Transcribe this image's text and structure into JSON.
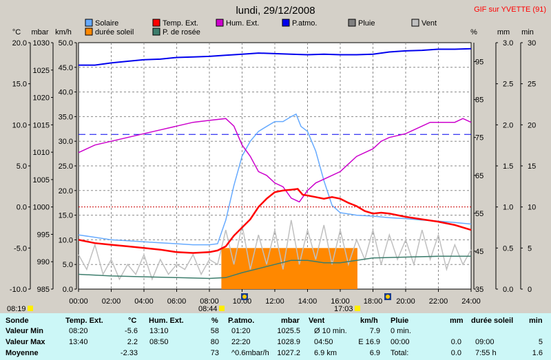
{
  "page": {
    "title": "lundi, 29/12/2008",
    "station": "GIF sur YVETTE (91)",
    "sunrise": "08:44",
    "sunset": "17:03",
    "first_time": "08:19"
  },
  "colors": {
    "solar": "#66aaff",
    "temp": "#ff0000",
    "hum": "#cc00cc",
    "press": "#0000ee",
    "rain": "#808080",
    "wind": "#c0c0c0",
    "sun": "#ff8800",
    "dew": "#3c7d6c"
  },
  "chart_data": {
    "type": "line",
    "x_range": [
      "00:00",
      "24:00"
    ],
    "x_ticks": [
      "00:00",
      "02:00",
      "04:00",
      "06:00",
      "08:00",
      "10:00",
      "12:00",
      "14:00",
      "16:00",
      "18:00",
      "20:00",
      "22:00",
      "24:00"
    ],
    "axes": [
      {
        "unit": "°C",
        "ylim": [
          -10,
          20
        ],
        "ticks": [
          "20.0",
          "15.0",
          "10.0",
          "5.0",
          "0.0",
          "-5.0",
          "-10.0"
        ]
      },
      {
        "unit": "mbar",
        "ylim": [
          985,
          1030
        ],
        "ticks": [
          "1030",
          "1025",
          "1020",
          "1015",
          "1010",
          "1005",
          "1000",
          "995",
          "990",
          "985"
        ]
      },
      {
        "unit": "km/h",
        "ylim": [
          0,
          50
        ],
        "ticks": [
          "50.0",
          "45.0",
          "40.0",
          "35.0",
          "30.0",
          "25.0",
          "20.0",
          "15.0",
          "10.0",
          "5.0",
          "0.0"
        ]
      },
      {
        "unit": "%",
        "ylim": [
          35,
          100
        ],
        "ticks": [
          "95",
          "85",
          "75",
          "65",
          "55",
          "45",
          "35"
        ]
      },
      {
        "unit": "mm",
        "ylim": [
          0,
          3
        ],
        "ticks": [
          "3.0",
          "2.5",
          "2.0",
          "1.5",
          "1.0",
          "0.5",
          "0.0"
        ]
      },
      {
        "unit": "min",
        "ylim": [
          0,
          30
        ],
        "ticks": [
          "30",
          "25",
          "20",
          "15",
          "10",
          "5",
          "0"
        ]
      }
    ],
    "legend": [
      {
        "name": "Solaire",
        "color": "#66aaff"
      },
      {
        "name": "Temp. Ext.",
        "color": "#ff0000"
      },
      {
        "name": "Hum. Ext.",
        "color": "#cc00cc"
      },
      {
        "name": "P.atmo.",
        "color": "#0000ee"
      },
      {
        "name": "Pluie",
        "color": "#808080"
      },
      {
        "name": "Vent",
        "color": "#c0c0c0"
      },
      {
        "name": "durée soleil",
        "color": "#ff8800"
      },
      {
        "name": "P. de rosée",
        "color": "#3c7d6c"
      }
    ],
    "series": [
      {
        "name": "Temp. Ext.",
        "axis": "°C",
        "points": [
          [
            0,
            -4.0
          ],
          [
            1,
            -4.4
          ],
          [
            2,
            -4.6
          ],
          [
            3,
            -4.8
          ],
          [
            4,
            -5.0
          ],
          [
            5,
            -5.2
          ],
          [
            6,
            -5.5
          ],
          [
            7,
            -5.6
          ],
          [
            8,
            -5.5
          ],
          [
            8.5,
            -5.3
          ],
          [
            9,
            -4.8
          ],
          [
            9.5,
            -3.5
          ],
          [
            10,
            -2.5
          ],
          [
            10.5,
            -1.5
          ],
          [
            11,
            0
          ],
          [
            11.5,
            1.0
          ],
          [
            12,
            1.8
          ],
          [
            12.5,
            2.0
          ],
          [
            13,
            2.1
          ],
          [
            13.4,
            2.2
          ],
          [
            13.7,
            1.5
          ],
          [
            14,
            1.4
          ],
          [
            14.5,
            1.2
          ],
          [
            15,
            1.0
          ],
          [
            15.5,
            1.2
          ],
          [
            16,
            1.0
          ],
          [
            16.5,
            0.5
          ],
          [
            17,
            0.1
          ],
          [
            17.5,
            -0.5
          ],
          [
            18,
            -0.8
          ],
          [
            18.5,
            -0.7
          ],
          [
            19,
            -0.8
          ],
          [
            19.5,
            -1.0
          ],
          [
            20,
            -1.2
          ],
          [
            21,
            -1.5
          ],
          [
            22,
            -1.8
          ],
          [
            23,
            -2.2
          ],
          [
            24,
            -2.8
          ]
        ]
      },
      {
        "name": "P.atmo.",
        "axis": "mbar",
        "points": [
          [
            0,
            1025.9
          ],
          [
            1,
            1025.9
          ],
          [
            2,
            1026.3
          ],
          [
            3,
            1026.6
          ],
          [
            4,
            1026.9
          ],
          [
            5,
            1027.0
          ],
          [
            6,
            1027.3
          ],
          [
            7,
            1027.4
          ],
          [
            8,
            1027.5
          ],
          [
            9,
            1027.7
          ],
          [
            10,
            1027.9
          ],
          [
            11,
            1028.1
          ],
          [
            12,
            1028.0
          ],
          [
            13,
            1027.9
          ],
          [
            14,
            1027.8
          ],
          [
            15,
            1027.9
          ],
          [
            16,
            1027.8
          ],
          [
            17,
            1027.8
          ],
          [
            18,
            1027.9
          ],
          [
            19,
            1028.3
          ],
          [
            20,
            1028.5
          ],
          [
            21,
            1028.6
          ],
          [
            22,
            1028.8
          ],
          [
            23,
            1028.8
          ],
          [
            24,
            1028.9
          ]
        ]
      },
      {
        "name": "Hum. Ext.",
        "axis": "%",
        "points": [
          [
            0,
            71
          ],
          [
            0.5,
            72
          ],
          [
            1,
            73
          ],
          [
            2,
            74
          ],
          [
            3,
            75
          ],
          [
            4,
            76
          ],
          [
            5,
            77
          ],
          [
            6,
            78
          ],
          [
            7,
            79
          ],
          [
            8,
            79.5
          ],
          [
            9,
            80
          ],
          [
            9.5,
            78
          ],
          [
            10,
            73
          ],
          [
            10.5,
            70
          ],
          [
            11,
            66
          ],
          [
            11.5,
            65
          ],
          [
            12,
            63
          ],
          [
            12.5,
            62
          ],
          [
            13,
            59
          ],
          [
            13.5,
            58
          ],
          [
            14,
            61
          ],
          [
            14.5,
            63
          ],
          [
            15,
            64
          ],
          [
            16,
            66
          ],
          [
            16.5,
            68
          ],
          [
            17,
            70
          ],
          [
            18,
            72
          ],
          [
            18.5,
            74
          ],
          [
            19,
            75
          ],
          [
            20,
            76
          ],
          [
            21,
            78
          ],
          [
            21.5,
            79
          ],
          [
            22,
            79
          ],
          [
            23,
            79
          ],
          [
            23.5,
            80
          ],
          [
            24,
            79
          ]
        ]
      },
      {
        "name": "Solaire",
        "axis": "km/h",
        "points": [
          [
            0,
            11
          ],
          [
            1,
            10.5
          ],
          [
            2,
            10
          ],
          [
            3,
            9.8
          ],
          [
            4,
            9.6
          ],
          [
            5,
            9.4
          ],
          [
            6,
            9.2
          ],
          [
            7,
            9.0
          ],
          [
            8,
            9.0
          ],
          [
            8.5,
            9.2
          ],
          [
            9,
            14
          ],
          [
            9.5,
            21
          ],
          [
            10,
            27
          ],
          [
            10.5,
            30
          ],
          [
            11,
            32
          ],
          [
            11.5,
            33
          ],
          [
            12,
            34
          ],
          [
            12.5,
            34
          ],
          [
            13,
            35
          ],
          [
            13.3,
            35.5
          ],
          [
            13.6,
            33
          ],
          [
            14,
            32
          ],
          [
            14.5,
            28
          ],
          [
            15,
            22
          ],
          [
            15.5,
            17
          ],
          [
            16,
            15.5
          ],
          [
            17,
            15
          ],
          [
            18,
            14.8
          ],
          [
            19,
            14.5
          ],
          [
            20,
            14.3
          ],
          [
            21,
            14
          ],
          [
            22,
            13.8
          ],
          [
            23,
            13.5
          ],
          [
            24,
            13.2
          ]
        ]
      },
      {
        "name": "P. de rosée",
        "axis": "°C",
        "points": [
          [
            0,
            -8.2
          ],
          [
            2,
            -8.4
          ],
          [
            4,
            -8.5
          ],
          [
            6,
            -8.6
          ],
          [
            8,
            -8.7
          ],
          [
            9,
            -8.6
          ],
          [
            10,
            -8.0
          ],
          [
            11,
            -7.5
          ],
          [
            12,
            -7.0
          ],
          [
            13,
            -6.5
          ],
          [
            14,
            -6.5
          ],
          [
            15,
            -6.8
          ],
          [
            16,
            -6.8
          ],
          [
            17,
            -6.5
          ],
          [
            18,
            -6.2
          ],
          [
            20,
            -6.1
          ],
          [
            22,
            -6.0
          ],
          [
            24,
            -6.0
          ]
        ]
      },
      {
        "name": "Vent",
        "axis": "km/h",
        "points": [
          [
            0,
            7
          ],
          [
            0.5,
            4
          ],
          [
            1,
            9
          ],
          [
            1.5,
            3
          ],
          [
            2,
            6
          ],
          [
            2.5,
            2
          ],
          [
            3,
            5
          ],
          [
            3.5,
            3
          ],
          [
            4,
            7
          ],
          [
            4.5,
            2
          ],
          [
            5,
            6
          ],
          [
            5.5,
            3
          ],
          [
            6,
            5
          ],
          [
            6.5,
            4
          ],
          [
            7,
            7
          ],
          [
            7.5,
            3
          ],
          [
            8,
            6
          ],
          [
            8.5,
            5
          ],
          [
            9,
            12
          ],
          [
            9.5,
            5
          ],
          [
            10,
            13
          ],
          [
            10.5,
            4
          ],
          [
            11,
            11
          ],
          [
            11.5,
            5
          ],
          [
            12,
            12
          ],
          [
            12.5,
            4
          ],
          [
            13,
            14
          ],
          [
            13.5,
            5
          ],
          [
            14,
            12
          ],
          [
            14.5,
            6
          ],
          [
            15,
            13
          ],
          [
            15.5,
            5
          ],
          [
            16,
            12
          ],
          [
            16.5,
            5
          ],
          [
            17,
            10
          ],
          [
            17.5,
            6
          ],
          [
            18,
            12
          ],
          [
            18.5,
            5
          ],
          [
            19,
            11
          ],
          [
            19.5,
            6
          ],
          [
            20,
            10
          ],
          [
            20.5,
            5
          ],
          [
            21,
            12
          ],
          [
            21.5,
            6
          ],
          [
            22,
            11
          ],
          [
            22.5,
            4
          ],
          [
            23,
            9
          ],
          [
            23.5,
            5
          ],
          [
            24,
            8
          ]
        ]
      }
    ],
    "sun_duration": {
      "axis": "min",
      "start": "08:44",
      "end": "17:03",
      "points": [
        [
          8.5,
          5
        ],
        [
          17,
          5
        ]
      ]
    },
    "reference_lines": [
      {
        "axis": "°C",
        "value": 0,
        "color": "#cc0000",
        "style": "dotted"
      },
      {
        "axis": "mbar",
        "value": 1013.25,
        "color": "#0000ee",
        "style": "dashed"
      }
    ]
  },
  "table": {
    "headers": [
      "Sonde",
      "Temp. Ext.",
      "°C",
      "Hum. Ext.",
      "%",
      "P.atmo.",
      "mbar",
      "Vent",
      "km/h",
      "Pluie",
      "mm",
      "durée soleil",
      "min"
    ],
    "rows": [
      {
        "label": "Valeur Min",
        "t_time": "08:20",
        "t_val": "-5.6",
        "h_time": "13:10",
        "h_val": "58",
        "p_time": "01:20",
        "p_val": "1025.5",
        "w_time": "Ø 10 min.",
        "w_val": "7.9",
        "r_time": "0 min.",
        "r_val": "",
        "s_time": "",
        "s_val": ""
      },
      {
        "label": "Valeur Max",
        "t_time": "13:40",
        "t_val": "2.2",
        "h_time": "08:50",
        "h_val": "80",
        "p_time": "22:20",
        "p_val": "1028.9",
        "w_time": "04:50",
        "w_val": "E 16.9",
        "r_time": "00:00",
        "r_val": "0.0",
        "s_time": "09:00",
        "s_val": "5"
      },
      {
        "label": "Moyenne",
        "t_time": "",
        "t_val": "-2.33",
        "h_time": "",
        "h_val": "73",
        "p_time": "^0.6mbar/h",
        "p_val": "1027.2",
        "w_time": "6.9 km",
        "w_val": "6.9",
        "r_time": "Total:",
        "r_val": "0.0",
        "s_time": "7:55 h",
        "s_val": "1.6"
      }
    ]
  }
}
